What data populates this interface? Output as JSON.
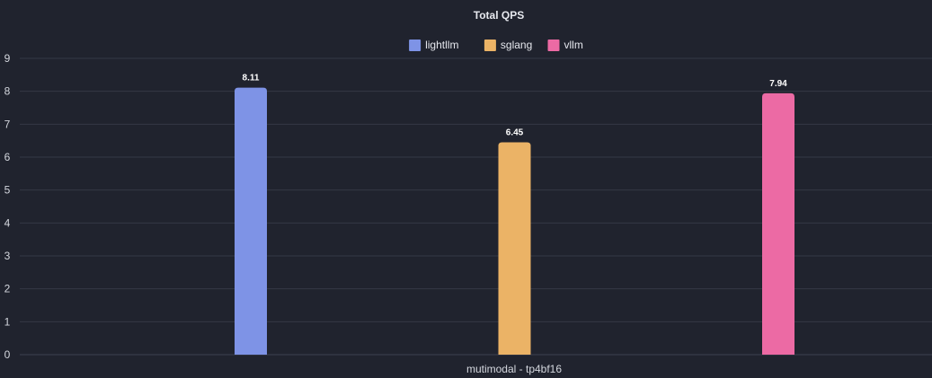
{
  "chart_data": {
    "type": "bar",
    "title": "Total QPS",
    "categories": [
      "mutimodal - tp4bf16"
    ],
    "series": [
      {
        "name": "lightllm",
        "color": "#7e93e6",
        "values": [
          8.11
        ]
      },
      {
        "name": "sglang",
        "color": "#ebb366",
        "values": [
          6.45
        ]
      },
      {
        "name": "vllm",
        "color": "#ec6aa4",
        "values": [
          7.94
        ]
      }
    ],
    "value_labels": [
      "8.11",
      "6.45",
      "7.94"
    ],
    "ylim": [
      0,
      9
    ],
    "yticks": [
      "0",
      "1",
      "2",
      "3",
      "4",
      "5",
      "6",
      "7",
      "8",
      "9"
    ],
    "grid": true,
    "legend_position": "top-center"
  }
}
